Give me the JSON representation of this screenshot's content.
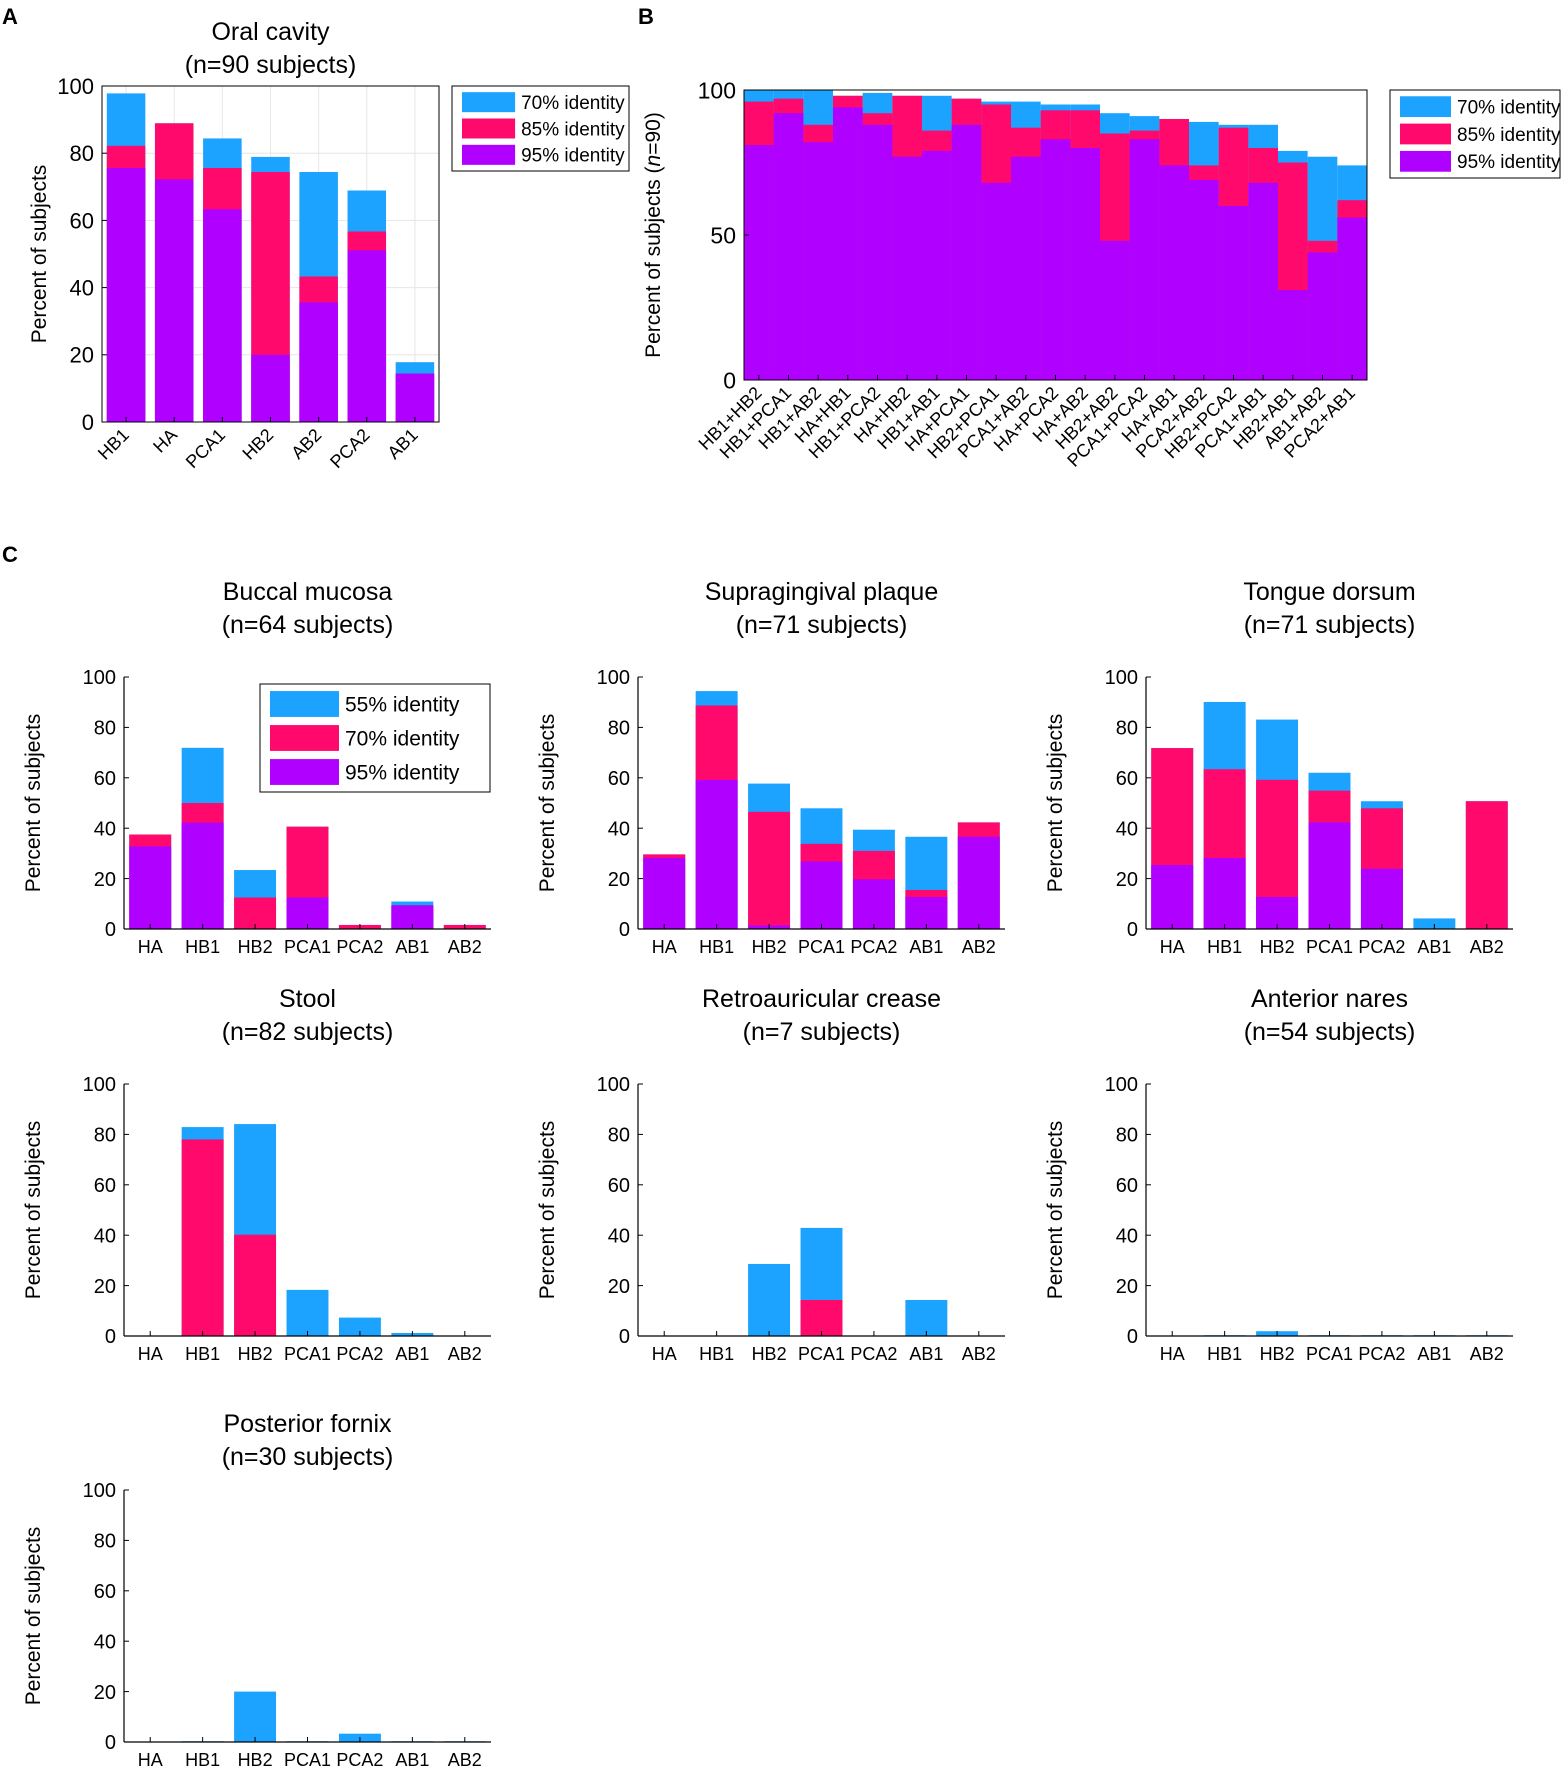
{
  "figure": {
    "panel_labels": [
      "A",
      "B",
      "C"
    ],
    "colors": {
      "c70": "#1ba3ff",
      "c85": "#ff0a6c",
      "c95": "#b000ff",
      "axis": "#000000",
      "grid": "#e6e6e6"
    }
  },
  "chart_data": [
    {
      "id": "A",
      "type": "bar",
      "stacked": "overlay",
      "title_lines": [
        "Oral cavity",
        "(n=90 subjects)"
      ],
      "ylabel": "Percent of subjects",
      "xlabel": "",
      "ylim": [
        0,
        100
      ],
      "yticks": [
        0,
        20,
        40,
        60,
        80,
        100
      ],
      "ytick_labels": [
        "0",
        "20",
        "40",
        "60",
        "80",
        "100"
      ],
      "grid": true,
      "tick_rotation": -45,
      "legend_position": "top-right",
      "categories": [
        "HB1",
        "HA",
        "PCA1",
        "HB2",
        "AB2",
        "PCA2",
        "AB1"
      ],
      "series": [
        {
          "name": "70% identity",
          "color_key": "c70",
          "values": [
            97.8,
            88.9,
            84.4,
            78.9,
            74.4,
            68.9,
            17.8
          ]
        },
        {
          "name": "85% identity",
          "color_key": "c85",
          "values": [
            82.2,
            88.9,
            75.6,
            74.4,
            43.3,
            56.7,
            14.4
          ]
        },
        {
          "name": "95% identity",
          "color_key": "c95",
          "values": [
            75.6,
            72.2,
            63.3,
            20.0,
            35.6,
            51.1,
            14.4
          ]
        }
      ]
    },
    {
      "id": "B",
      "type": "bar",
      "stacked": "overlay",
      "title_lines": [],
      "ylabel": "Percent of subjects (n=90)",
      "xlabel": "",
      "ylim": [
        0,
        100
      ],
      "yticks": [
        0,
        50,
        100
      ],
      "ytick_labels": [
        "0",
        "50",
        "100"
      ],
      "grid": false,
      "tick_rotation": -45,
      "legend_position": "top-right",
      "categories": [
        "HB1+HB2",
        "HB1+PCA1",
        "HB1+AB2",
        "HA+HB1",
        "HB1+PCA2",
        "HA+HB2",
        "HB1+AB1",
        "HA+PCA1",
        "HB2+PCA1",
        "PCA1+AB2",
        "HA+PCA2",
        "HA+AB2",
        "HB2+AB2",
        "PCA1+PCA2",
        "HA+AB1",
        "PCA2+AB2",
        "HB2+PCA2",
        "PCA1+AB1",
        "HB2+AB1",
        "AB1+AB2",
        "PCA2+AB1"
      ],
      "series": [
        {
          "name": "70% identity",
          "color_key": "c70",
          "values": [
            100,
            100,
            100,
            98,
            99,
            98,
            98,
            97,
            96,
            96,
            95,
            95,
            92,
            91,
            89,
            89,
            88,
            88,
            79,
            77,
            74
          ]
        },
        {
          "name": "85% identity",
          "color_key": "c85",
          "values": [
            96,
            97,
            88,
            98,
            92,
            98,
            86,
            97,
            95,
            87,
            93,
            93,
            85,
            86,
            90,
            74,
            87,
            80,
            75,
            48,
            62
          ]
        },
        {
          "name": "95% identity",
          "color_key": "c95",
          "values": [
            81,
            92,
            82,
            94,
            88,
            77,
            79,
            88,
            68,
            77,
            83,
            80,
            48,
            83,
            74,
            69,
            60,
            68,
            31,
            44,
            56
          ]
        }
      ]
    },
    {
      "id": "C-buccal",
      "type": "bar",
      "stacked": "overlay",
      "title_lines": [
        "Buccal mucosa",
        "(n=64 subjects)"
      ],
      "ylabel": "Percent of subjects",
      "xlabel": "",
      "ylim": [
        0,
        100
      ],
      "yticks": [
        0,
        20,
        40,
        60,
        80,
        100
      ],
      "ytick_labels": [
        "0",
        "20",
        "40",
        "60",
        "80",
        "100"
      ],
      "grid": false,
      "tick_rotation": 0,
      "legend_position": "top-right",
      "categories": [
        "HA",
        "HB1",
        "HB2",
        "PCA1",
        "PCA2",
        "AB1",
        "AB2"
      ],
      "series": [
        {
          "name": "55% identity",
          "color_key": "c70",
          "values": [
            37.5,
            71.9,
            23.4,
            40.6,
            1.6,
            10.9,
            1.6
          ]
        },
        {
          "name": "70% identity",
          "color_key": "c85",
          "values": [
            37.5,
            50.0,
            12.5,
            40.6,
            1.6,
            9.4,
            1.6
          ]
        },
        {
          "name": "95% identity",
          "color_key": "c95",
          "values": [
            32.8,
            42.2,
            0,
            12.5,
            0,
            9.4,
            0
          ]
        }
      ]
    },
    {
      "id": "C-supragingival",
      "type": "bar",
      "stacked": "overlay",
      "title_lines": [
        "Supragingival plaque",
        "(n=71 subjects)"
      ],
      "ylabel": "Percent of subjects",
      "xlabel": "",
      "ylim": [
        0,
        100
      ],
      "yticks": [
        0,
        20,
        40,
        60,
        80,
        100
      ],
      "ytick_labels": [
        "0",
        "20",
        "40",
        "60",
        "80",
        "100"
      ],
      "grid": false,
      "tick_rotation": 0,
      "legend_position": "none",
      "categories": [
        "HA",
        "HB1",
        "HB2",
        "PCA1",
        "PCA2",
        "AB1",
        "AB2"
      ],
      "series": [
        {
          "name": "55% identity",
          "color_key": "c70",
          "values": [
            29.6,
            94.4,
            57.7,
            47.9,
            39.4,
            36.6,
            42.3
          ]
        },
        {
          "name": "70% identity",
          "color_key": "c85",
          "values": [
            29.6,
            88.7,
            46.5,
            33.8,
            31.0,
            15.5,
            42.3
          ]
        },
        {
          "name": "95% identity",
          "color_key": "c95",
          "values": [
            28.2,
            59.2,
            1.4,
            26.8,
            19.7,
            12.7,
            36.6
          ]
        }
      ]
    },
    {
      "id": "C-tongue",
      "type": "bar",
      "stacked": "overlay",
      "title_lines": [
        "Tongue dorsum",
        "(n=71 subjects)"
      ],
      "ylabel": "Percent of subjects",
      "xlabel": "",
      "ylim": [
        0,
        100
      ],
      "yticks": [
        0,
        20,
        40,
        60,
        80,
        100
      ],
      "ytick_labels": [
        "0",
        "20",
        "40",
        "60",
        "80",
        "100"
      ],
      "grid": false,
      "tick_rotation": 0,
      "legend_position": "none",
      "categories": [
        "HA",
        "HB1",
        "HB2",
        "PCA1",
        "PCA2",
        "AB1",
        "AB2"
      ],
      "series": [
        {
          "name": "55% identity",
          "color_key": "c70",
          "values": [
            71.8,
            90.1,
            83.1,
            62.0,
            50.7,
            4.2,
            50.7
          ]
        },
        {
          "name": "70% identity",
          "color_key": "c85",
          "values": [
            71.8,
            63.4,
            59.2,
            54.9,
            47.9,
            0,
            50.7
          ]
        },
        {
          "name": "95% identity",
          "color_key": "c95",
          "values": [
            25.4,
            28.2,
            12.7,
            42.3,
            23.9,
            0,
            0
          ]
        }
      ]
    },
    {
      "id": "C-stool",
      "type": "bar",
      "stacked": "overlay",
      "title_lines": [
        "Stool",
        "(n=82 subjects)"
      ],
      "ylabel": "Percent of subjects",
      "xlabel": "",
      "ylim": [
        0,
        100
      ],
      "yticks": [
        0,
        20,
        40,
        60,
        80,
        100
      ],
      "ytick_labels": [
        "0",
        "20",
        "40",
        "60",
        "80",
        "100"
      ],
      "grid": false,
      "tick_rotation": 0,
      "legend_position": "none",
      "categories": [
        "HA",
        "HB1",
        "HB2",
        "PCA1",
        "PCA2",
        "AB1",
        "AB2"
      ],
      "series": [
        {
          "name": "55% identity",
          "color_key": "c70",
          "values": [
            0,
            82.9,
            84.1,
            18.3,
            7.3,
            1.2,
            0
          ]
        },
        {
          "name": "70% identity",
          "color_key": "c85",
          "values": [
            0,
            78.0,
            40.2,
            0,
            0,
            0,
            0
          ]
        },
        {
          "name": "95% identity",
          "color_key": "c95",
          "values": [
            0,
            0,
            0,
            0,
            0,
            0,
            0
          ]
        }
      ]
    },
    {
      "id": "C-retroauricular",
      "type": "bar",
      "stacked": "overlay",
      "title_lines": [
        "Retroauricular crease",
        "(n=7 subjects)"
      ],
      "ylabel": "Percent of subjects",
      "xlabel": "",
      "ylim": [
        0,
        100
      ],
      "yticks": [
        0,
        20,
        40,
        60,
        80,
        100
      ],
      "ytick_labels": [
        "0",
        "20",
        "40",
        "60",
        "80",
        "100"
      ],
      "grid": false,
      "tick_rotation": 0,
      "legend_position": "none",
      "categories": [
        "HA",
        "HB1",
        "HB2",
        "PCA1",
        "PCA2",
        "AB1",
        "AB2"
      ],
      "series": [
        {
          "name": "55% identity",
          "color_key": "c70",
          "values": [
            0,
            0,
            28.6,
            42.9,
            0,
            14.3,
            0
          ]
        },
        {
          "name": "70% identity",
          "color_key": "c85",
          "values": [
            0,
            0,
            0,
            14.3,
            0,
            0,
            0
          ]
        },
        {
          "name": "95% identity",
          "color_key": "c95",
          "values": [
            0,
            0,
            0,
            0,
            0,
            0,
            0
          ]
        }
      ]
    },
    {
      "id": "C-nares",
      "type": "bar",
      "stacked": "overlay",
      "title_lines": [
        "Anterior nares",
        "(n=54 subjects)"
      ],
      "ylabel": "Percent of subjects",
      "xlabel": "",
      "ylim": [
        0,
        100
      ],
      "yticks": [
        0,
        20,
        40,
        60,
        80,
        100
      ],
      "ytick_labels": [
        "0",
        "20",
        "40",
        "60",
        "80",
        "100"
      ],
      "grid": false,
      "tick_rotation": 0,
      "legend_position": "none",
      "categories": [
        "HA",
        "HB1",
        "HB2",
        "PCA1",
        "PCA2",
        "AB1",
        "AB2"
      ],
      "series": [
        {
          "name": "55% identity",
          "color_key": "c70",
          "values": [
            0,
            0.3,
            1.9,
            0.3,
            0.3,
            0.3,
            0.3
          ]
        },
        {
          "name": "70% identity",
          "color_key": "c85",
          "values": [
            0,
            0,
            0,
            0,
            0,
            0,
            0
          ]
        },
        {
          "name": "95% identity",
          "color_key": "c95",
          "values": [
            0,
            0,
            0,
            0,
            0,
            0,
            0
          ]
        }
      ]
    },
    {
      "id": "C-fornix",
      "type": "bar",
      "stacked": "overlay",
      "title_lines": [
        "Posterior fornix",
        "(n=30 subjects)"
      ],
      "ylabel": "Percent of subjects",
      "xlabel": "",
      "ylim": [
        0,
        100
      ],
      "yticks": [
        0,
        20,
        40,
        60,
        80,
        100
      ],
      "ytick_labels": [
        "0",
        "20",
        "40",
        "60",
        "80",
        "100"
      ],
      "grid": false,
      "tick_rotation": 0,
      "legend_position": "none",
      "categories": [
        "HA",
        "HB1",
        "HB2",
        "PCA1",
        "PCA2",
        "AB1",
        "AB2"
      ],
      "series": [
        {
          "name": "55% identity",
          "color_key": "c70",
          "values": [
            0,
            0.3,
            20.0,
            0.3,
            3.3,
            0.3,
            0.3
          ]
        },
        {
          "name": "70% identity",
          "color_key": "c85",
          "values": [
            0,
            0,
            0,
            0,
            0,
            0,
            0
          ]
        },
        {
          "name": "95% identity",
          "color_key": "c95",
          "values": [
            0,
            0,
            0,
            0,
            0,
            0,
            0
          ]
        }
      ]
    }
  ]
}
